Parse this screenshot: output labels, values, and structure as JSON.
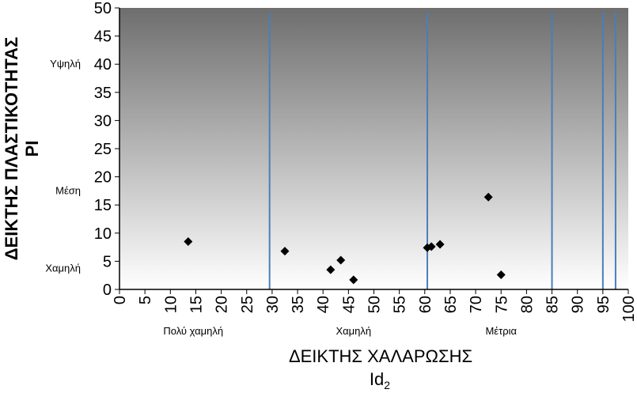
{
  "chart_data": {
    "type": "scatter",
    "title": "",
    "xlabel": "ΔΕΙΚΤΗΣ ΧΑΛΑΡΩΣΗΣ",
    "xlabel_sub": "Id",
    "xlabel_sub_index": "2",
    "ylabel": "ΔΕΙΚΤΗΣ ΠΛΑΣΤΙΚΟΤΗΤΑΣ",
    "ylabel_sub": "PI",
    "xlim": [
      0,
      100
    ],
    "ylim": [
      0,
      50
    ],
    "x_ticks": [
      0,
      5,
      10,
      15,
      20,
      25,
      30,
      35,
      40,
      45,
      50,
      55,
      60,
      65,
      70,
      75,
      80,
      85,
      90,
      95,
      100
    ],
    "y_ticks": [
      0,
      5,
      10,
      15,
      20,
      25,
      30,
      35,
      40,
      45,
      50
    ],
    "grid": false,
    "legend": "none",
    "background_gradient": [
      "#6e6e6e",
      "#ffffff"
    ],
    "marker": "diamond",
    "marker_color": "#000000",
    "points": [
      {
        "x": 13.5,
        "y": 8.5
      },
      {
        "x": 32.5,
        "y": 6.8
      },
      {
        "x": 41.5,
        "y": 3.5
      },
      {
        "x": 43.5,
        "y": 5.2
      },
      {
        "x": 46,
        "y": 1.7
      },
      {
        "x": 60.5,
        "y": 7.4
      },
      {
        "x": 61.3,
        "y": 7.6
      },
      {
        "x": 63,
        "y": 8
      },
      {
        "x": 72.5,
        "y": 16.4
      },
      {
        "x": 75,
        "y": 2.6
      }
    ],
    "vertical_lines": {
      "color": "#4a7ebb",
      "x": [
        29.5,
        60.5,
        85,
        95,
        97.5
      ]
    },
    "y_zone_labels": [
      {
        "label": "Υψηλή",
        "y": 40
      },
      {
        "label": "Μέση",
        "y": 17.5
      },
      {
        "label": "Χαμηλή",
        "y": 3.7
      }
    ],
    "x_zone_labels": [
      {
        "label": "Πολύ χαμηλή",
        "x": 14.5
      },
      {
        "label": "Χαμηλή",
        "x": 46
      },
      {
        "label": "Μέτρια",
        "x": 75
      }
    ]
  }
}
